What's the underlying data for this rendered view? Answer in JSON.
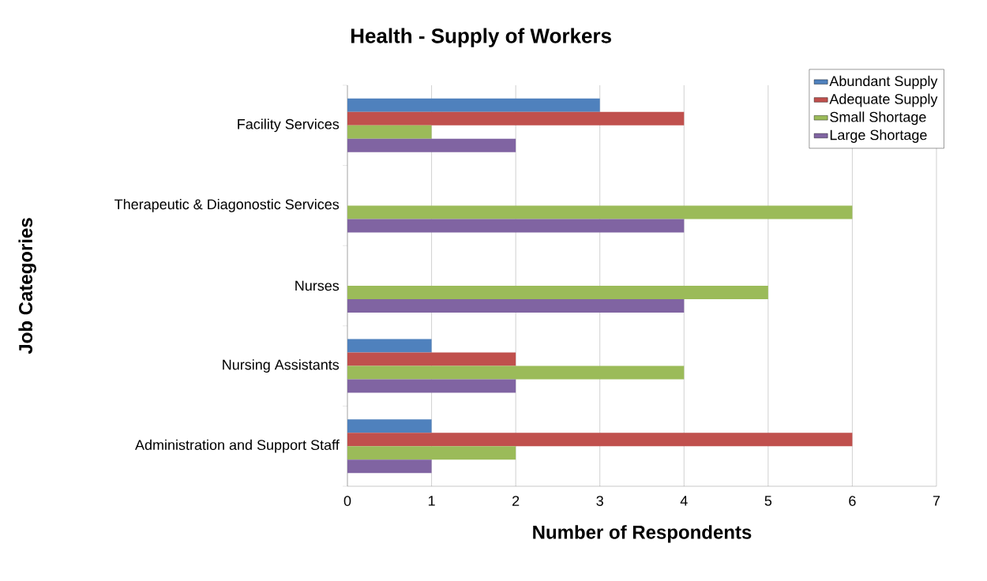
{
  "chart_data": {
    "type": "bar",
    "orientation": "horizontal",
    "title": "Health - Supply of Workers",
    "xlabel": "Number of Respondents",
    "ylabel": "Job Categories",
    "categories": [
      "Facility Services",
      "Therapeutic & Diagonostic Services",
      "Nurses",
      "Nursing Assistants",
      "Administration and Support Staff"
    ],
    "series": [
      {
        "name": "Abundant Supply",
        "color": "#4f81bd",
        "values": [
          3,
          0,
          0,
          1,
          1
        ]
      },
      {
        "name": "Adequate Supply",
        "color": "#c0504d",
        "values": [
          4,
          0,
          0,
          2,
          6
        ]
      },
      {
        "name": "Small Shortage",
        "color": "#9bbb59",
        "values": [
          1,
          6,
          5,
          4,
          2
        ]
      },
      {
        "name": "Large Shortage",
        "color": "#8064a2",
        "values": [
          2,
          4,
          4,
          2,
          1
        ]
      }
    ],
    "xlim": [
      0,
      7
    ],
    "xticks": [
      0,
      1,
      2,
      3,
      4,
      5,
      6,
      7
    ],
    "grid": "x",
    "legend": "top right"
  }
}
